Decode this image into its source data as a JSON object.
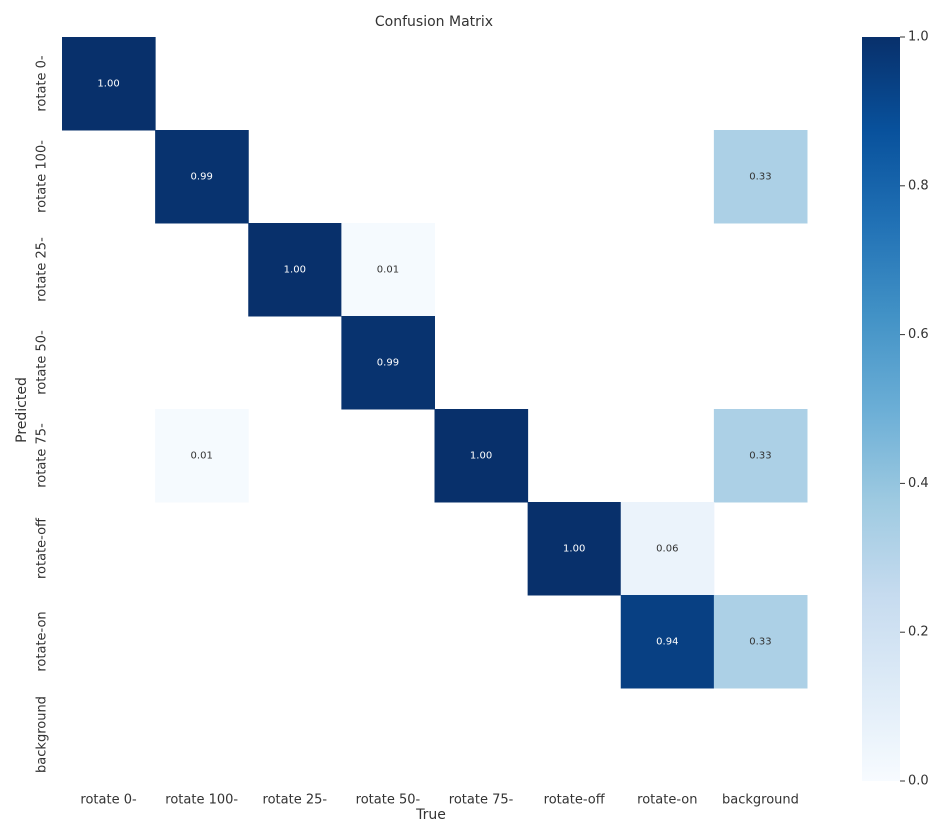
{
  "chart_data": {
    "type": "heatmap",
    "title": "Confusion Matrix",
    "x_label": "True",
    "y_label": "Predicted",
    "categories": [
      "rotate 0-",
      "rotate 100-",
      "rotate 25-",
      "rotate 50-",
      "rotate 75-",
      "rotate-off",
      "rotate-on",
      "background"
    ],
    "values": [
      [
        1.0,
        null,
        null,
        null,
        null,
        null,
        null,
        null
      ],
      [
        null,
        0.99,
        null,
        null,
        null,
        null,
        null,
        0.33
      ],
      [
        null,
        null,
        1.0,
        0.01,
        null,
        null,
        null,
        null
      ],
      [
        null,
        null,
        null,
        0.99,
        null,
        null,
        null,
        null
      ],
      [
        null,
        0.01,
        null,
        null,
        1.0,
        null,
        null,
        0.33
      ],
      [
        null,
        null,
        null,
        null,
        null,
        1.0,
        0.06,
        null
      ],
      [
        null,
        null,
        null,
        null,
        null,
        null,
        0.94,
        0.33
      ],
      [
        null,
        null,
        null,
        null,
        null,
        null,
        null,
        null
      ]
    ],
    "value_labels": [
      [
        "1.00",
        null,
        null,
        null,
        null,
        null,
        null,
        null
      ],
      [
        null,
        "0.99",
        null,
        null,
        null,
        null,
        null,
        "0.33"
      ],
      [
        null,
        null,
        "1.00",
        "0.01",
        null,
        null,
        null,
        null
      ],
      [
        null,
        null,
        null,
        "0.99",
        null,
        null,
        null,
        null
      ],
      [
        null,
        "0.01",
        null,
        null,
        "1.00",
        null,
        null,
        "0.33"
      ],
      [
        null,
        null,
        null,
        null,
        null,
        "1.00",
        "0.06",
        null
      ],
      [
        null,
        null,
        null,
        null,
        null,
        null,
        "0.94",
        "0.33"
      ],
      [
        null,
        null,
        null,
        null,
        null,
        null,
        null,
        null
      ]
    ],
    "colormap": "Blues",
    "clim": [
      0,
      1
    ],
    "cticks": [
      {
        "value": 0,
        "label": "0.0"
      },
      {
        "value": 0.2,
        "label": "0.2"
      },
      {
        "value": 0.4,
        "label": "0.4"
      },
      {
        "value": 0.6,
        "label": "0.6"
      },
      {
        "value": 0.8,
        "label": "0.8"
      },
      {
        "value": 1,
        "label": "1.0"
      }
    ]
  }
}
